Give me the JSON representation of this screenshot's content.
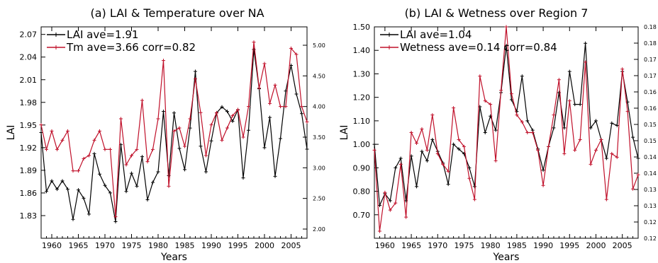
{
  "chart_data": [
    {
      "type": "line",
      "title": "(a) LAI & Temperature over NA",
      "xlabel": "Years",
      "ylabel": "LAI",
      "xlim": [
        1958,
        2008
      ],
      "x_ticks": [
        1960,
        1965,
        1970,
        1975,
        1980,
        1985,
        1990,
        1995,
        2000,
        2005
      ],
      "ylim": [
        1.8,
        2.08
      ],
      "y_ticks": [
        "1.83",
        "1.86",
        "1.89",
        "1.92",
        "1.95",
        "1.98",
        "2.01",
        "2.04",
        "2.07"
      ],
      "y2lim": [
        1.85,
        5.3
      ],
      "y2_ticks": [
        "2.00",
        "2.50",
        "3.00",
        "3.50",
        "4.00",
        "4.50",
        "5.00"
      ],
      "legend": [
        {
          "label": "LAI  ave=1.91",
          "color": "#000000"
        },
        {
          "label": "Tm  ave=3.66  corr=0.82",
          "color": "#c0102a"
        }
      ],
      "x": [
        1958,
        1959,
        1960,
        1961,
        1962,
        1963,
        1964,
        1965,
        1966,
        1967,
        1968,
        1969,
        1970,
        1971,
        1972,
        1973,
        1974,
        1975,
        1976,
        1977,
        1978,
        1979,
        1980,
        1981,
        1982,
        1983,
        1984,
        1985,
        1986,
        1987,
        1988,
        1989,
        1990,
        1991,
        1992,
        1993,
        1994,
        1995,
        1996,
        1997,
        1998,
        1999,
        2000,
        2001,
        2002,
        2003,
        2004,
        2005,
        2006,
        2007,
        2008
      ],
      "series": [
        {
          "axis": "left",
          "color": "#000000",
          "values": [
            1.94,
            1.862,
            1.876,
            1.865,
            1.876,
            1.865,
            1.825,
            1.864,
            1.853,
            1.832,
            1.912,
            1.885,
            1.87,
            1.86,
            1.822,
            1.924,
            1.862,
            1.886,
            1.869,
            1.908,
            1.851,
            1.874,
            1.888,
            1.968,
            1.883,
            1.966,
            1.919,
            1.891,
            1.946,
            2.021,
            1.922,
            1.888,
            1.929,
            1.966,
            1.974,
            1.968,
            1.955,
            1.97,
            1.88,
            1.943,
            2.05,
            1.998,
            1.92,
            1.96,
            1.882,
            1.932,
            1.995,
            2.029,
            1.991,
            1.965,
            1.918
          ]
        },
        {
          "axis": "right",
          "color": "#c0102a",
          "values": [
            3.7,
            3.3,
            3.6,
            3.3,
            3.45,
            3.6,
            2.95,
            2.95,
            3.15,
            3.2,
            3.45,
            3.6,
            3.3,
            3.3,
            2.2,
            3.8,
            3.05,
            3.2,
            3.3,
            4.1,
            3.1,
            3.3,
            3.8,
            4.75,
            2.7,
            3.6,
            3.65,
            3.35,
            3.8,
            4.45,
            3.9,
            3.2,
            3.7,
            3.9,
            3.45,
            3.65,
            3.85,
            3.95,
            3.5,
            4.0,
            5.05,
            4.3,
            4.7,
            4.05,
            4.35,
            4.0,
            4.0,
            4.95,
            4.85,
            4.0,
            3.75
          ]
        }
      ]
    },
    {
      "type": "line",
      "title": "(b) LAI & Wetness over Region 7",
      "xlabel": "Years",
      "ylabel": "LAI",
      "xlim": [
        1958,
        2008
      ],
      "x_ticks": [
        1960,
        1965,
        1970,
        1975,
        1980,
        1985,
        1990,
        1995,
        2000,
        2005
      ],
      "ylim": [
        0.6,
        1.5
      ],
      "y_ticks": [
        "0.70",
        "0.80",
        "0.90",
        "1.00",
        "1.10",
        "1.20",
        "1.30",
        "1.40",
        "1.50"
      ],
      "y2lim": [
        0.12,
        0.18
      ],
      "y2_ticks": [
        "0.12",
        "0.12",
        "0.13",
        "0.13",
        "0.14",
        "0.14",
        "0.15",
        "0.15",
        "0.16",
        "0.16",
        "0.17",
        "0.17",
        "0.18",
        "0.18"
      ],
      "legend": [
        {
          "label": "LAI  ave=1.04",
          "color": "#000000"
        },
        {
          "label": "Wetness  ave=0.14  corr=0.84",
          "color": "#c0102a"
        }
      ],
      "x": [
        1958,
        1959,
        1960,
        1961,
        1962,
        1963,
        1964,
        1965,
        1966,
        1967,
        1968,
        1969,
        1970,
        1971,
        1972,
        1973,
        1974,
        1975,
        1976,
        1977,
        1978,
        1979,
        1980,
        1981,
        1982,
        1983,
        1984,
        1985,
        1986,
        1987,
        1988,
        1989,
        1990,
        1991,
        1992,
        1993,
        1994,
        1995,
        1996,
        1997,
        1998,
        1999,
        2000,
        2001,
        2002,
        2003,
        2004,
        2005,
        2006,
        2007,
        2008
      ],
      "series": [
        {
          "axis": "left",
          "color": "#000000",
          "values": [
            1.0,
            0.74,
            0.79,
            0.76,
            0.9,
            0.94,
            0.76,
            0.95,
            0.82,
            0.97,
            0.93,
            1.02,
            0.97,
            0.92,
            0.83,
            1.0,
            0.98,
            0.96,
            0.9,
            0.82,
            1.16,
            1.05,
            1.12,
            1.06,
            1.22,
            1.42,
            1.19,
            1.14,
            1.29,
            1.1,
            1.06,
            0.98,
            0.89,
            0.99,
            1.07,
            1.22,
            1.07,
            1.31,
            1.17,
            1.17,
            1.43,
            1.07,
            1.1,
            1.02,
            0.94,
            1.09,
            1.08,
            1.31,
            1.18,
            1.03,
            0.94
          ]
        },
        {
          "axis": "right",
          "color": "#c0102a",
          "values": [
            0.145,
            0.122,
            0.133,
            0.128,
            0.13,
            0.141,
            0.126,
            0.15,
            0.147,
            0.151,
            0.145,
            0.155,
            0.144,
            0.141,
            0.139,
            0.157,
            0.148,
            0.146,
            0.137,
            0.131,
            0.166,
            0.159,
            0.158,
            0.142,
            0.162,
            0.18,
            0.161,
            0.155,
            0.153,
            0.15,
            0.15,
            0.145,
            0.135,
            0.146,
            0.155,
            0.165,
            0.144,
            0.159,
            0.145,
            0.148,
            0.17,
            0.141,
            0.145,
            0.148,
            0.131,
            0.144,
            0.143,
            0.168,
            0.156,
            0.134,
            0.138
          ]
        }
      ]
    }
  ]
}
